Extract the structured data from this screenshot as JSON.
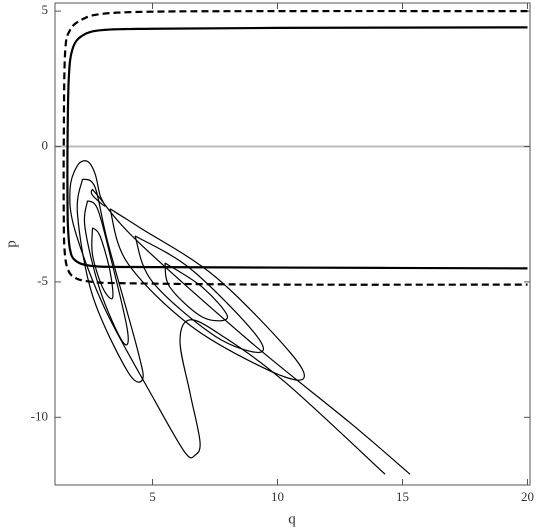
{
  "chart_data": {
    "type": "line",
    "x_label": "q",
    "y_label": "p",
    "xlim": [
      1.1,
      20.1
    ],
    "ylim": [
      -12.5,
      5.3
    ],
    "xticks": [
      5,
      10,
      15,
      20
    ],
    "yticks": [
      5,
      0,
      -5,
      -10
    ],
    "reference_line": {
      "y": 0,
      "color": "#bbbbbb"
    },
    "series": [
      {
        "color": "#000000",
        "dash": false,
        "width": 2.2,
        "x": [
          20,
          10,
          5,
          3,
          2.2,
          1.8,
          1.65,
          1.6,
          1.6,
          1.62,
          1.7,
          1.9,
          2.5,
          4,
          10,
          20
        ],
        "y": [
          4.4,
          4.38,
          4.35,
          4.3,
          4.1,
          3.6,
          2.5,
          0,
          -2,
          -3,
          -3.8,
          -4.2,
          -4.4,
          -4.45,
          -4.47,
          -4.5
        ]
      },
      {
        "color": "#000000",
        "dash": true,
        "width": 2.2,
        "x": [
          20,
          10,
          5,
          3,
          2.2,
          1.7,
          1.5,
          1.45,
          1.45,
          1.48,
          1.6,
          1.9,
          2.6,
          4,
          10,
          20
        ],
        "y": [
          5.0,
          5.0,
          4.98,
          4.9,
          4.7,
          4.3,
          3.4,
          0,
          -2.5,
          -3.8,
          -4.5,
          -4.85,
          -5.0,
          -5.05,
          -5.1,
          -5.1
        ]
      },
      {
        "color": "#000000",
        "dash": false,
        "width": 1.2,
        "x": [
          14.3,
          10.3,
          7.8,
          6.5,
          6.1,
          6.5,
          6.9,
          6.7,
          6.3,
          5.1,
          3.1,
          1.9,
          1.7,
          2.0,
          2.4,
          2.7,
          2.9,
          3.1,
          2.6,
          2.6,
          2.8,
          4.4,
          8.9,
          12.9,
          15.3
        ],
        "y": [
          -12.1,
          -8.7,
          -7.0,
          -6.4,
          -7.2,
          -9.1,
          -10.9,
          -11.4,
          -11.3,
          -9.4,
          -6.0,
          -3.1,
          -1.6,
          -0.7,
          -0.55,
          -1.0,
          -1.8,
          -2.2,
          -1.8,
          -1.6,
          -1.8,
          -3.5,
          -7.2,
          -10.2,
          -12.1
        ]
      },
      {
        "color": "#000000",
        "dash": false,
        "width": 1.2,
        "x": [
          2.2,
          2.7,
          3.2,
          4.4,
          4.6,
          4.0,
          2.6,
          2.0,
          2.2
        ],
        "y": [
          -1.2,
          -1.5,
          -3.5,
          -7.5,
          -8.6,
          -8.3,
          -5.5,
          -2.5,
          -1.2
        ]
      },
      {
        "color": "#000000",
        "dash": false,
        "width": 1.2,
        "x": [
          2.4,
          2.8,
          3.3,
          4.0,
          3.8,
          2.9,
          2.3,
          2.4
        ],
        "y": [
          -2.0,
          -2.3,
          -4.0,
          -6.8,
          -7.2,
          -5.3,
          -3.0,
          -2.0
        ]
      },
      {
        "color": "#000000",
        "dash": false,
        "width": 1.2,
        "x": [
          2.6,
          2.9,
          3.3,
          3.4,
          3.0,
          2.6,
          2.6
        ],
        "y": [
          -3.0,
          -3.3,
          -4.6,
          -5.6,
          -5.2,
          -4.0,
          -3.0
        ]
      },
      {
        "color": "#000000",
        "dash": false,
        "width": 1.2,
        "x": [
          3.3,
          4.5,
          7.5,
          10.5,
          11.0,
          9.5,
          6.5,
          4.0,
          3.3
        ],
        "y": [
          -2.3,
          -3.0,
          -4.8,
          -7.6,
          -8.6,
          -8.2,
          -6.6,
          -4.3,
          -2.3
        ]
      },
      {
        "color": "#000000",
        "dash": false,
        "width": 1.2,
        "x": [
          4.3,
          6.5,
          9.0,
          9.3,
          7.5,
          5.0,
          4.3
        ],
        "y": [
          -3.3,
          -4.5,
          -6.8,
          -7.6,
          -7.0,
          -5.0,
          -3.3
        ]
      },
      {
        "color": "#000000",
        "dash": false,
        "width": 1.2,
        "x": [
          5.5,
          7.0,
          8.0,
          7.0,
          5.7,
          5.5
        ],
        "y": [
          -4.3,
          -5.2,
          -6.3,
          -6.3,
          -5.2,
          -4.3
        ]
      }
    ]
  }
}
